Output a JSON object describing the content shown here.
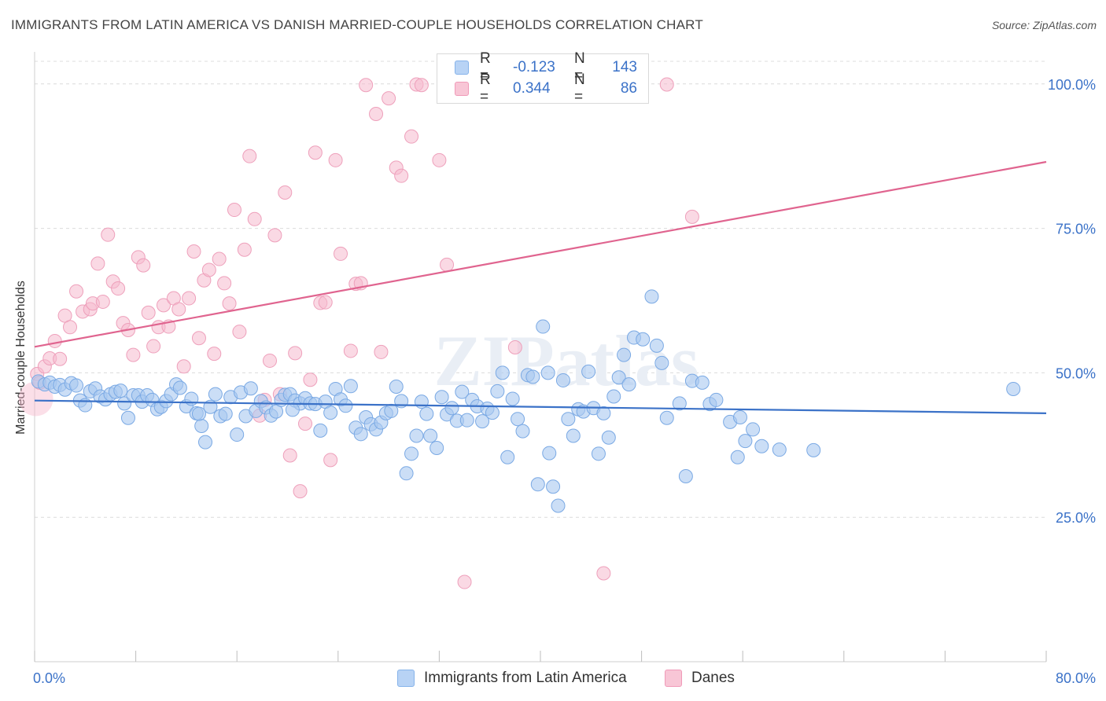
{
  "title": "IMMIGRANTS FROM LATIN AMERICA VS DANISH MARRIED-COUPLE HOUSEHOLDS CORRELATION CHART",
  "source": "Source: ZipAtlas.com",
  "watermark": "ZIPatlas",
  "legend": {
    "rows": [
      {
        "r_label": "R =",
        "r_value": "-0.123",
        "n_label": "N =",
        "n_value": "143"
      },
      {
        "r_label": "R =",
        "r_value": "0.344",
        "n_label": "N =",
        "n_value": "86"
      }
    ]
  },
  "bottom_legend": [
    "Immigrants from Latin America",
    "Danes"
  ],
  "chart_data": {
    "type": "scatter",
    "xlabel": "",
    "ylabel": "Married-couple Households",
    "xlim": [
      0,
      80
    ],
    "ylim": [
      0,
      105
    ],
    "x_tick_labels": [
      "0.0%",
      "80.0%"
    ],
    "y_tick_labels": [
      "25.0%",
      "50.0%",
      "75.0%",
      "100.0%"
    ],
    "y_ticks": [
      25,
      50,
      75,
      100
    ],
    "grid": true,
    "legend_position": "top-center",
    "colors": {
      "blue": "#3b72c8",
      "blue_fill": "#a9c8f0",
      "pink": "#e0648f",
      "pink_fill": "#f6b9cd",
      "axis_label": "#3b72c8"
    },
    "series": [
      {
        "name": "Immigrants from Latin America",
        "trend": {
          "x": [
            0,
            80
          ],
          "y": [
            45.2,
            43.0
          ]
        },
        "points": [
          [
            0.3,
            48.5
          ],
          [
            0.8,
            48.0
          ],
          [
            1.2,
            48.3
          ],
          [
            1.6,
            47.6
          ],
          [
            2.0,
            47.9
          ],
          [
            2.4,
            47.1
          ],
          [
            2.9,
            48.2
          ],
          [
            3.3,
            47.8
          ],
          [
            3.6,
            45.2
          ],
          [
            4.0,
            44.4
          ],
          [
            4.4,
            46.8
          ],
          [
            4.8,
            47.3
          ],
          [
            5.2,
            45.9
          ],
          [
            5.6,
            45.4
          ],
          [
            6.0,
            46.3
          ],
          [
            6.4,
            46.7
          ],
          [
            6.8,
            46.9
          ],
          [
            7.1,
            44.7
          ],
          [
            7.4,
            42.2
          ],
          [
            7.8,
            46.1
          ],
          [
            8.2,
            46.1
          ],
          [
            8.5,
            45.0
          ],
          [
            8.9,
            46.1
          ],
          [
            9.3,
            45.3
          ],
          [
            9.7,
            43.7
          ],
          [
            10.0,
            44.1
          ],
          [
            10.4,
            45.1
          ],
          [
            10.8,
            46.3
          ],
          [
            11.2,
            48.0
          ],
          [
            11.5,
            47.4
          ],
          [
            12.0,
            44.2
          ],
          [
            12.4,
            45.5
          ],
          [
            12.8,
            43.0
          ],
          [
            13.2,
            40.8
          ],
          [
            13.5,
            38.0
          ],
          [
            13.9,
            44.1
          ],
          [
            14.3,
            46.3
          ],
          [
            14.7,
            42.5
          ],
          [
            15.1,
            42.9
          ],
          [
            15.5,
            45.8
          ],
          [
            16.0,
            39.3
          ],
          [
            16.3,
            46.6
          ],
          [
            16.7,
            42.5
          ],
          [
            17.1,
            47.3
          ],
          [
            17.5,
            43.4
          ],
          [
            17.9,
            45.1
          ],
          [
            18.3,
            44.0
          ],
          [
            18.7,
            42.6
          ],
          [
            19.1,
            43.3
          ],
          [
            19.5,
            45.3
          ],
          [
            19.8,
            46.2
          ],
          [
            20.2,
            46.3
          ],
          [
            20.6,
            45.2
          ],
          [
            21.0,
            44.7
          ],
          [
            21.4,
            45.6
          ],
          [
            21.8,
            44.7
          ],
          [
            22.2,
            44.6
          ],
          [
            22.6,
            40.0
          ],
          [
            23.0,
            45.0
          ],
          [
            23.4,
            43.1
          ],
          [
            23.8,
            47.2
          ],
          [
            24.2,
            45.4
          ],
          [
            24.6,
            44.3
          ],
          [
            25.0,
            47.7
          ],
          [
            25.4,
            40.5
          ],
          [
            25.8,
            39.4
          ],
          [
            26.2,
            42.3
          ],
          [
            26.6,
            41.1
          ],
          [
            27.0,
            40.2
          ],
          [
            27.4,
            41.4
          ],
          [
            27.8,
            43.0
          ],
          [
            28.2,
            43.4
          ],
          [
            28.6,
            47.6
          ],
          [
            29.0,
            45.1
          ],
          [
            29.4,
            32.6
          ],
          [
            29.8,
            36.0
          ],
          [
            30.2,
            39.1
          ],
          [
            30.6,
            45.0
          ],
          [
            31.0,
            42.9
          ],
          [
            31.3,
            39.1
          ],
          [
            31.8,
            37.0
          ],
          [
            32.2,
            45.8
          ],
          [
            32.6,
            42.8
          ],
          [
            33.0,
            43.9
          ],
          [
            33.4,
            41.7
          ],
          [
            33.8,
            46.7
          ],
          [
            34.2,
            41.8
          ],
          [
            34.6,
            45.3
          ],
          [
            35.0,
            44.2
          ],
          [
            35.4,
            41.6
          ],
          [
            35.8,
            43.8
          ],
          [
            36.2,
            43.1
          ],
          [
            36.6,
            46.8
          ],
          [
            37.0,
            50.0
          ],
          [
            37.4,
            35.4
          ],
          [
            37.8,
            45.5
          ],
          [
            38.2,
            42.0
          ],
          [
            38.6,
            39.9
          ],
          [
            39.0,
            49.6
          ],
          [
            39.4,
            49.3
          ],
          [
            39.8,
            30.7
          ],
          [
            40.2,
            58.0
          ],
          [
            40.6,
            50.0
          ],
          [
            41.0,
            30.3
          ],
          [
            41.4,
            27.0
          ],
          [
            41.8,
            48.7
          ],
          [
            42.2,
            42.0
          ],
          [
            42.6,
            39.1
          ],
          [
            43.0,
            43.7
          ],
          [
            43.4,
            43.3
          ],
          [
            43.8,
            50.2
          ],
          [
            44.2,
            43.9
          ],
          [
            44.6,
            36.0
          ],
          [
            45.0,
            43.0
          ],
          [
            45.4,
            38.8
          ],
          [
            45.8,
            45.9
          ],
          [
            46.2,
            49.2
          ],
          [
            46.6,
            53.1
          ],
          [
            47.0,
            48.0
          ],
          [
            47.4,
            56.1
          ],
          [
            48.1,
            55.8
          ],
          [
            48.8,
            63.2
          ],
          [
            49.2,
            54.7
          ],
          [
            49.6,
            51.7
          ],
          [
            50.0,
            42.2
          ],
          [
            51.0,
            44.7
          ],
          [
            51.5,
            32.1
          ],
          [
            52.0,
            48.6
          ],
          [
            52.8,
            48.3
          ],
          [
            53.4,
            44.6
          ],
          [
            53.9,
            45.3
          ],
          [
            55.0,
            41.5
          ],
          [
            55.6,
            35.4
          ],
          [
            55.8,
            42.3
          ],
          [
            56.2,
            38.2
          ],
          [
            56.8,
            40.2
          ],
          [
            57.5,
            37.3
          ],
          [
            58.9,
            36.7
          ],
          [
            77.4,
            47.2
          ],
          [
            61.6,
            36.6
          ],
          [
            40.7,
            36.1
          ],
          [
            13.0,
            42.9
          ],
          [
            20.4,
            43.6
          ]
        ]
      },
      {
        "name": "Danes",
        "trend": {
          "x": [
            0,
            80
          ],
          "y": [
            54.5,
            86.5
          ]
        },
        "points": [
          [
            0.2,
            49.8
          ],
          [
            0.4,
            48.3
          ],
          [
            0.8,
            51.1
          ],
          [
            1.2,
            52.5
          ],
          [
            1.6,
            55.5
          ],
          [
            2.0,
            52.4
          ],
          [
            2.4,
            59.9
          ],
          [
            2.8,
            57.9
          ],
          [
            3.3,
            64.1
          ],
          [
            3.8,
            60.6
          ],
          [
            4.4,
            61.0
          ],
          [
            4.6,
            62.0
          ],
          [
            5.0,
            68.9
          ],
          [
            5.4,
            62.3
          ],
          [
            5.8,
            73.9
          ],
          [
            6.2,
            65.8
          ],
          [
            6.6,
            64.6
          ],
          [
            7.0,
            58.6
          ],
          [
            7.4,
            57.4
          ],
          [
            7.8,
            53.1
          ],
          [
            8.2,
            70.0
          ],
          [
            8.6,
            68.6
          ],
          [
            9.0,
            60.4
          ],
          [
            9.4,
            54.6
          ],
          [
            9.8,
            57.9
          ],
          [
            10.2,
            61.7
          ],
          [
            10.6,
            58.0
          ],
          [
            11.0,
            62.9
          ],
          [
            11.4,
            61.0
          ],
          [
            11.8,
            51.1
          ],
          [
            12.2,
            62.9
          ],
          [
            12.6,
            71.0
          ],
          [
            13.0,
            56.0
          ],
          [
            13.4,
            66.0
          ],
          [
            13.8,
            67.8
          ],
          [
            14.2,
            53.3
          ],
          [
            14.6,
            69.7
          ],
          [
            15.0,
            65.5
          ],
          [
            15.4,
            62.0
          ],
          [
            15.8,
            78.2
          ],
          [
            16.2,
            57.1
          ],
          [
            16.6,
            71.3
          ],
          [
            17.0,
            87.5
          ],
          [
            17.4,
            76.6
          ],
          [
            17.8,
            42.6
          ],
          [
            18.2,
            45.3
          ],
          [
            18.6,
            52.1
          ],
          [
            19.0,
            73.8
          ],
          [
            19.4,
            46.3
          ],
          [
            19.8,
            81.2
          ],
          [
            20.2,
            35.7
          ],
          [
            20.6,
            53.4
          ],
          [
            21.0,
            29.5
          ],
          [
            21.4,
            41.2
          ],
          [
            21.8,
            48.8
          ],
          [
            22.2,
            88.1
          ],
          [
            22.6,
            62.1
          ],
          [
            23.0,
            62.2
          ],
          [
            23.4,
            34.9
          ],
          [
            23.8,
            86.8
          ],
          [
            24.2,
            70.6
          ],
          [
            25.0,
            53.8
          ],
          [
            25.4,
            65.4
          ],
          [
            25.8,
            65.5
          ],
          [
            26.2,
            99.8
          ],
          [
            27.0,
            94.8
          ],
          [
            27.4,
            53.6
          ],
          [
            28.0,
            97.5
          ],
          [
            28.6,
            85.5
          ],
          [
            29.0,
            84.1
          ],
          [
            29.8,
            90.9
          ],
          [
            30.2,
            99.9
          ],
          [
            30.6,
            99.8
          ],
          [
            32.0,
            86.8
          ],
          [
            32.6,
            68.7
          ],
          [
            33.0,
            99.9
          ],
          [
            34.0,
            13.8
          ],
          [
            36.0,
            99.9
          ],
          [
            38.0,
            54.4
          ],
          [
            40.0,
            99.9
          ],
          [
            42.0,
            99.8
          ],
          [
            45.0,
            15.3
          ],
          [
            46.0,
            99.8
          ],
          [
            48.0,
            99.9
          ],
          [
            50.0,
            99.9
          ],
          [
            52.0,
            77.0
          ]
        ]
      }
    ]
  }
}
